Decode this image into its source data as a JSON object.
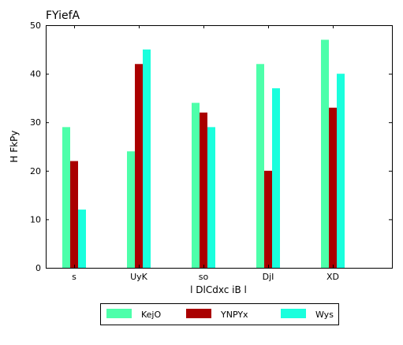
{
  "chart_data": {
    "type": "bar",
    "title": "FYiefA",
    "xlabel": "l DlCdxc iB l",
    "ylabel": "H FkPy",
    "categories": [
      "s",
      "UyK",
      "so",
      "DjI",
      "XD"
    ],
    "ylim": [
      0,
      50
    ],
    "yticks": [
      0,
      10,
      20,
      30,
      40,
      50
    ],
    "grid": false,
    "legend_position": "bottom-center",
    "series": [
      {
        "name": "KejO",
        "color": "#4dffaa",
        "values": [
          29,
          24,
          34,
          42,
          47
        ]
      },
      {
        "name": "YNPYx",
        "color": "#aa0000",
        "values": [
          22,
          42,
          32,
          20,
          33
        ]
      },
      {
        "name": "Wys",
        "color": "#1affdd",
        "values": [
          12,
          45,
          29,
          37,
          40
        ]
      }
    ]
  }
}
